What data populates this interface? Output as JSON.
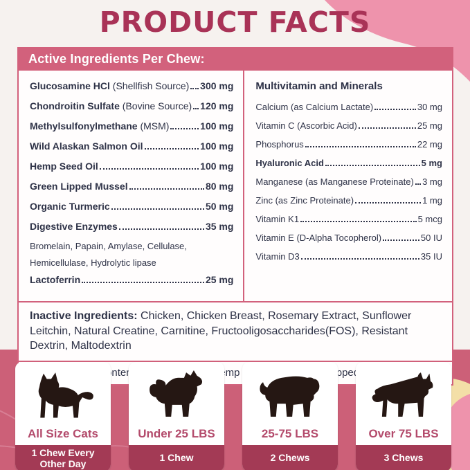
{
  "title": "PRODUCT FACTS",
  "panel": {
    "header": "Active Ingredients Per Chew:",
    "left_rows": [
      {
        "style": "bold",
        "name": "Glucosamine HCl",
        "note": "(Shellfish Source)",
        "value": "300 mg"
      },
      {
        "style": "bold",
        "name": "Chondroitin Sulfate",
        "note": "(Bovine Source)",
        "value": "120 mg"
      },
      {
        "style": "bold",
        "name": "Methylsulfonylmethane",
        "note": "(MSM)",
        "value": "100 mg"
      },
      {
        "style": "bold",
        "name": "Wild Alaskan Salmon Oil",
        "value": "100 mg"
      },
      {
        "style": "bold",
        "name": "Hemp Seed Oil",
        "value": "100 mg"
      },
      {
        "style": "bold",
        "name": "Green Lipped Mussel",
        "value": "80 mg"
      },
      {
        "style": "bold",
        "name": "Organic Turmeric",
        "value": "50 mg"
      },
      {
        "style": "bold",
        "name": "Digestive Enzymes",
        "value": "35 mg"
      },
      {
        "style": "sub",
        "text": "Bromelain, Papain, Amylase, Cellulase,"
      },
      {
        "style": "sub",
        "text": "Hemicellulase, Hydrolytic lipase"
      },
      {
        "style": "bold",
        "name": "Lactoferrin",
        "value": "25 mg"
      }
    ],
    "right_rows": [
      {
        "style": "header",
        "text": "Multivitamin and Minerals"
      },
      {
        "style": "plain",
        "name": "Calcium",
        "note": "(as Calcium Lactate)",
        "value": "30 mg"
      },
      {
        "style": "plain",
        "name": "Vitamin C",
        "note": "(Ascorbic Acid)",
        "value": "25 mg"
      },
      {
        "style": "plain",
        "name": "Phosphorus",
        "value": "22 mg"
      },
      {
        "style": "bold",
        "name": "Hyaluronic Acid",
        "value": "5 mg"
      },
      {
        "style": "plain",
        "name": "Manganese",
        "note": "(as Manganese Proteinate)",
        "value": "3 mg"
      },
      {
        "style": "plain",
        "name": "Zinc",
        "note": "(as Zinc Proteinate)",
        "value": "1 mg"
      },
      {
        "style": "plain",
        "name": "Vitamin K1",
        "value": "5 mcg"
      },
      {
        "style": "plain",
        "name": "Vitamin E",
        "note": "(D-Alpha Tocopherol)",
        "value": "50 IU"
      },
      {
        "style": "plain",
        "name": "Vitamin D3",
        "value": "35 IU"
      }
    ],
    "inactive_label": "Inactive Ingredients:",
    "inactive_text": " Chicken, Chicken Breast, Rosemary Extract, Sunflower Leitchin, Natural Creatine, Carnitine, Fructooligosaccharides(FOS), Resistant Dextrin, Maltodextrin",
    "omega_note": "Total Omega-3 content from salmon oil, hemp seed oil and green-lipped mussel: 135 mg"
  },
  "cards": [
    {
      "icon": "cat-icon",
      "title": "All Size Cats",
      "dose": "1 Chew Every Other Day"
    },
    {
      "icon": "small-dog-icon",
      "title": "Under 25 LBS",
      "dose": "1 Chew"
    },
    {
      "icon": "medium-dog-icon",
      "title": "25-75 LBS",
      "dose": "2 Chews"
    },
    {
      "icon": "large-dog-icon",
      "title": "Over 75 LBS",
      "dose": "3 Chews"
    }
  ],
  "colors": {
    "page_bg": "#f6f2ef",
    "title": "#a93357",
    "header_bar": "#d2617c",
    "text": "#2e3247",
    "dosage_bg": "#cc6078",
    "card_title": "#b34a6b",
    "card_footer": "#a33a55",
    "blob_pink": "#ee93ac",
    "blob_tan": "#f3dfa7",
    "silhouette": "#251713"
  }
}
